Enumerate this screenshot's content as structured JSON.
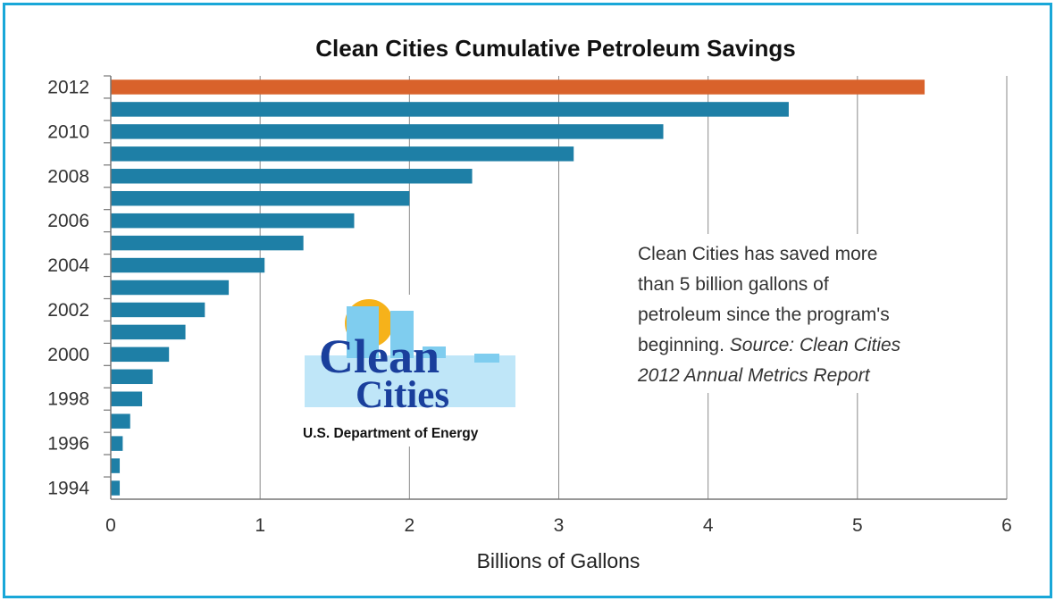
{
  "chart_data": {
    "type": "bar",
    "orientation": "horizontal",
    "title": "Clean Cities Cumulative Petroleum Savings",
    "xlabel": "Billions of Gallons",
    "ylabel": "",
    "xlim": [
      0,
      6
    ],
    "x_ticks": [
      "0",
      "1",
      "2",
      "3",
      "4",
      "5",
      "6"
    ],
    "grid": "vertical",
    "categories": [
      "1994",
      "1995",
      "1996",
      "1997",
      "1998",
      "1999",
      "2000",
      "2001",
      "2002",
      "2003",
      "2004",
      "2005",
      "2006",
      "2007",
      "2008",
      "2009",
      "2010",
      "2011",
      "2012"
    ],
    "category_labels_shown": [
      "1994",
      "1996",
      "1998",
      "2000",
      "2002",
      "2004",
      "2006",
      "2008",
      "2010",
      "2012"
    ],
    "values": [
      0.06,
      0.06,
      0.08,
      0.13,
      0.21,
      0.28,
      0.39,
      0.5,
      0.63,
      0.79,
      1.03,
      1.29,
      1.63,
      2.0,
      2.42,
      3.1,
      3.7,
      4.54,
      5.45
    ],
    "bar_color": "#1e7fa6",
    "highlight_category": "2012",
    "highlight_color": "#d9622b"
  },
  "annotation": {
    "lines": [
      "Clean Cities has saved more",
      "than 5 billion gallons of",
      "petroleum since the program's"
    ],
    "line4_text": "beginning. ",
    "line4_source": "Source: Clean Cities",
    "line5_source": "2012 Annual Metrics Report"
  },
  "logo": {
    "word1": "Clean",
    "word2": "Cities",
    "agency": "U.S. Department of Energy"
  },
  "colors": {
    "frame": "#19a7d8",
    "logo_sun": "#f6b21a",
    "logo_skyline": "#7fcdef",
    "logo_text": "#1a3f9c"
  }
}
